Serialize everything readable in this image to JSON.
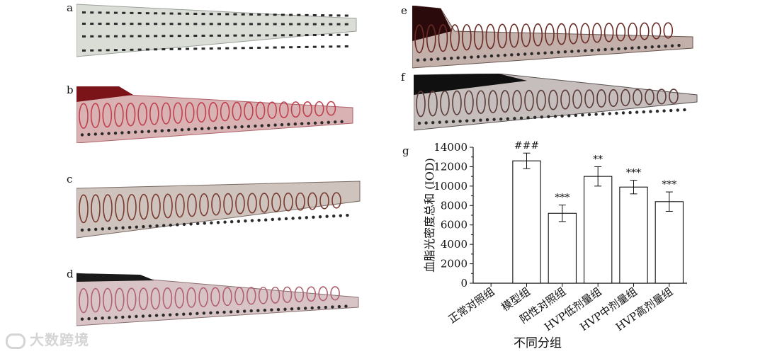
{
  "panels": [
    {
      "label": "a",
      "stain": "none"
    },
    {
      "label": "b",
      "stain": "heavy-red"
    },
    {
      "label": "c",
      "stain": "moderate"
    },
    {
      "label": "d",
      "stain": "light"
    },
    {
      "label": "e",
      "stain": "moderate"
    },
    {
      "label": "f",
      "stain": "moderate"
    }
  ],
  "watermark": "大数跨境",
  "chart_data": {
    "type": "bar",
    "panel_label": "g",
    "categories": [
      "正常对照组",
      "模型组",
      "阳性对照组",
      "HVP低剂量组",
      "HVP中剂量组",
      "HVP高剂量组"
    ],
    "values": [
      0,
      12600,
      7200,
      11000,
      9900,
      8400
    ],
    "errors": [
      0,
      800,
      850,
      1000,
      700,
      1000
    ],
    "annotations": [
      "",
      "###",
      "***",
      "**",
      "***",
      "***"
    ],
    "xlabel": "不同分组",
    "ylabel": "血脂光密度总和 (IOD)",
    "ylim": [
      0,
      14000
    ],
    "yticks": [
      0,
      2000,
      4000,
      6000,
      8000,
      10000,
      12000,
      14000
    ],
    "yticklabels": [
      "0",
      "2000",
      "4000",
      "6000",
      "8000",
      "10000",
      "12000",
      "14000"
    ],
    "grid": false
  }
}
